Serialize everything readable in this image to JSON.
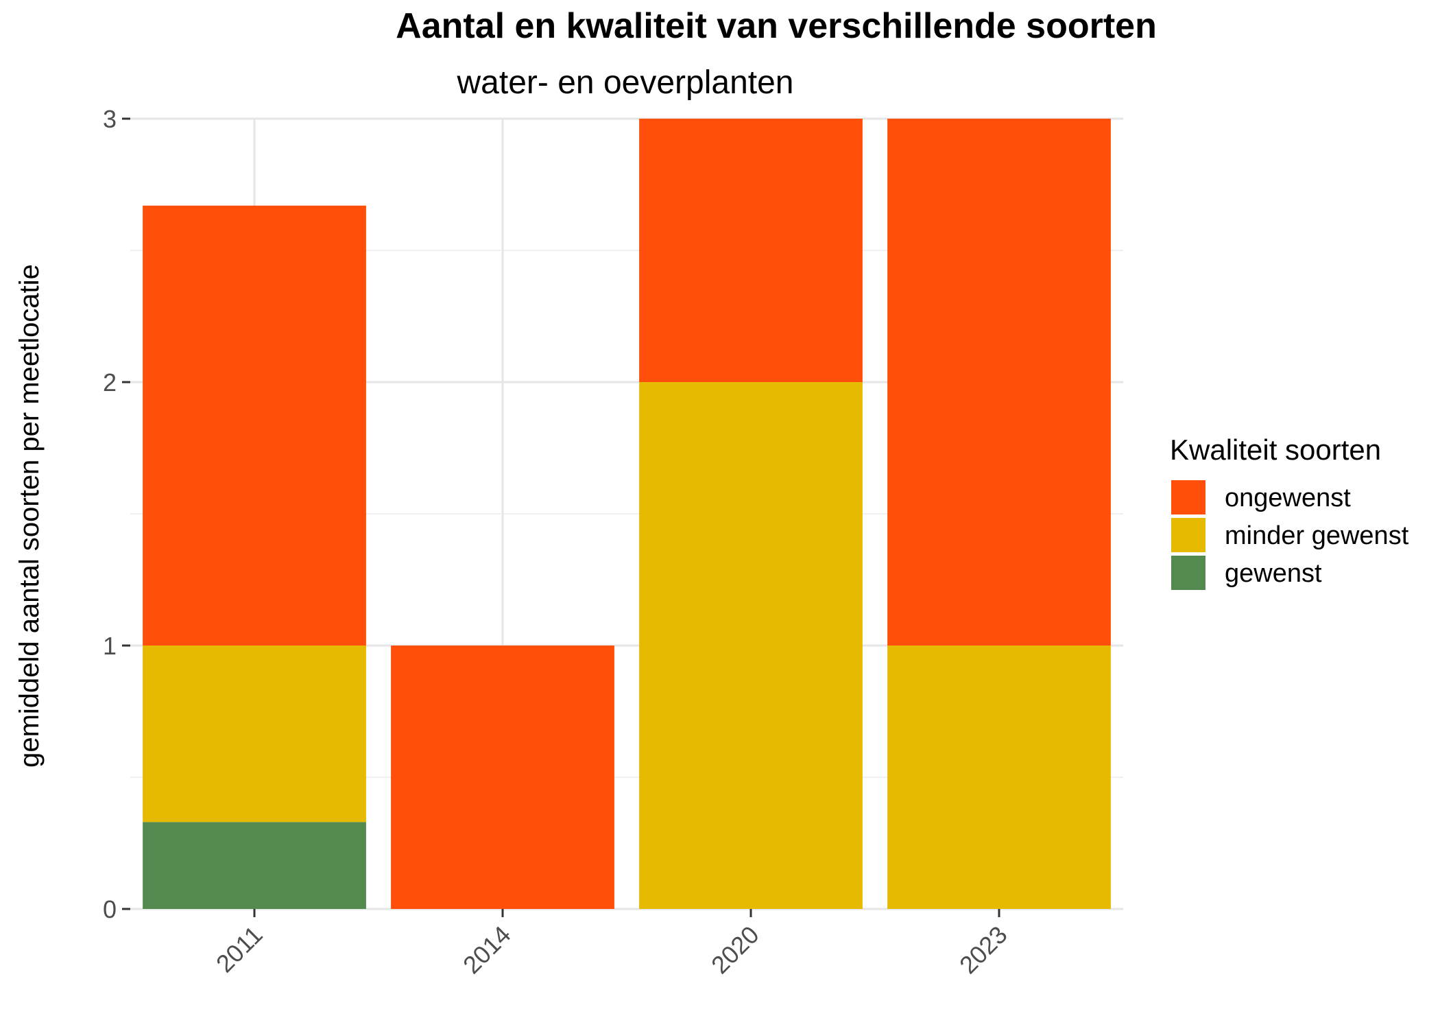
{
  "chart_data": {
    "type": "bar",
    "stacked": true,
    "title": "Aantal en kwaliteit van verschillende soorten",
    "subtitle": "water- en oeverplanten",
    "xlabel": "",
    "ylabel": "gemiddeld aantal soorten per meetlocatie",
    "categories": [
      "2011",
      "2014",
      "2020",
      "2023"
    ],
    "ylim": [
      0,
      3
    ],
    "yticks": [
      "0",
      "1",
      "2",
      "3"
    ],
    "grid": true,
    "legend": {
      "title": "Kwaliteit soorten",
      "position": "right"
    },
    "series": [
      {
        "name": "gewenst",
        "color": "#548A4F",
        "values": [
          0.33,
          0,
          0,
          0
        ]
      },
      {
        "name": "minder gewenst",
        "color": "#E5BA00",
        "values": [
          0.67,
          0,
          2,
          1
        ]
      },
      {
        "name": "ongewenst",
        "color": "#FF4F0A",
        "values": [
          1.67,
          1,
          1,
          2
        ]
      }
    ],
    "legend_order": [
      "ongewenst",
      "minder gewenst",
      "gewenst"
    ]
  }
}
